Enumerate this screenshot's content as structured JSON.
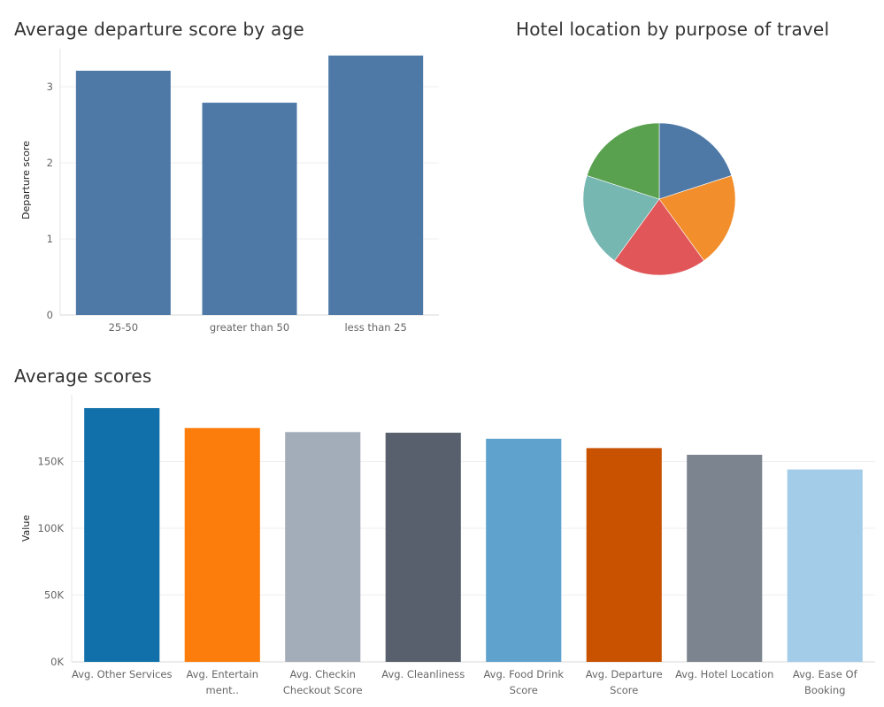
{
  "charts": {
    "departure": {
      "title": "Average departure score by age"
    },
    "pie": {
      "title": "Hotel location by purpose of travel"
    },
    "scores": {
      "title": "Average scores"
    }
  },
  "chart_data": [
    {
      "type": "bar",
      "title": "Average departure score by age",
      "xlabel": "",
      "ylabel": "Departure score",
      "categories": [
        "25-50",
        "greater than 50",
        "less than 25"
      ],
      "values": [
        3.21,
        2.79,
        3.41
      ],
      "ylim": [
        0,
        3.5
      ],
      "yticks": [
        0,
        1,
        2,
        3
      ],
      "grid": true,
      "color": "#4e79a7"
    },
    {
      "type": "pie",
      "title": "Hotel location by purpose of travel",
      "slices": [
        {
          "value": 20,
          "color": "#4e79a7"
        },
        {
          "value": 20,
          "color": "#f28e2b"
        },
        {
          "value": 20,
          "color": "#e15759"
        },
        {
          "value": 20,
          "color": "#76b7b2"
        },
        {
          "value": 20,
          "color": "#59a14f"
        }
      ]
    },
    {
      "type": "bar",
      "title": "Average scores",
      "xlabel": "",
      "ylabel": "Value",
      "categories": [
        [
          "Avg. Other Services"
        ],
        [
          "Avg. Entertain",
          "ment.."
        ],
        [
          "Avg. Checkin",
          "Checkout Score"
        ],
        [
          "Avg. Cleanliness"
        ],
        [
          "Avg. Food Drink",
          "Score"
        ],
        [
          "Avg. Departure",
          "Score"
        ],
        [
          "Avg. Hotel Location"
        ],
        [
          "Avg. Ease Of",
          "Booking"
        ]
      ],
      "values": [
        190000,
        175000,
        172000,
        171500,
        167000,
        160000,
        155000,
        144000
      ],
      "colors": [
        "#1170aa",
        "#fc7d0b",
        "#a3acb9",
        "#57606c",
        "#5fa2ce",
        "#c85200",
        "#7b848f",
        "#a3cce9"
      ],
      "ylim": [
        0,
        200000
      ],
      "yticks": [
        0,
        50000,
        100000,
        150000
      ],
      "yticklabels": [
        "0K",
        "50K",
        "100K",
        "150K"
      ],
      "grid": true
    }
  ]
}
